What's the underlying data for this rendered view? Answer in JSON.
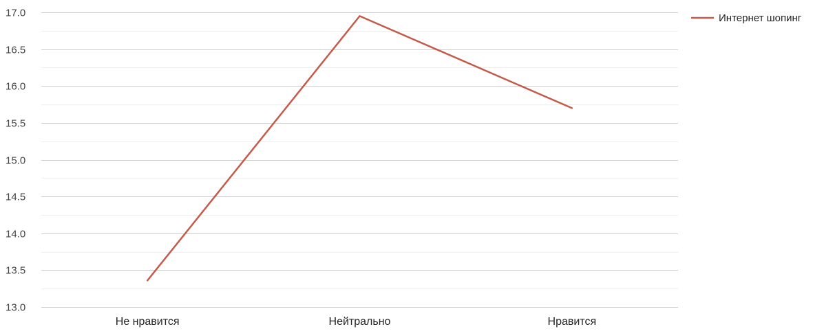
{
  "chart_data": {
    "type": "line",
    "categories": [
      "Не нравится",
      "Нейтрально",
      "Нравится"
    ],
    "series": [
      {
        "name": "Интернет шопинг",
        "values": [
          13.36,
          16.95,
          15.7
        ],
        "color": "#c55a4a"
      }
    ],
    "ylim": [
      13.0,
      17.0
    ],
    "yticks": [
      "13.0",
      "13.5",
      "14.0",
      "14.5",
      "15.0",
      "15.5",
      "16.0",
      "16.5",
      "17.0"
    ],
    "ytick_values": [
      13.0,
      13.5,
      14.0,
      14.5,
      15.0,
      15.5,
      16.0,
      16.5,
      17.0
    ],
    "grid": true,
    "legend_position": "top-right",
    "colors": {
      "major_grid": "#cccccc",
      "minor_grid": "#eeeeee"
    }
  }
}
